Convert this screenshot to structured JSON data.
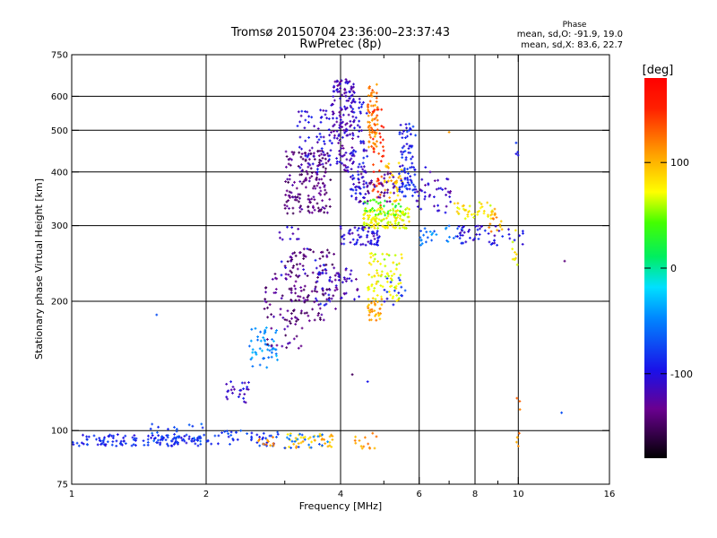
{
  "chart_data": {
    "type": "scatter",
    "title": "Tromsø 20150704 23:36:00–23:37:43",
    "subtitle": "RwPretec (8p)",
    "xlabel": "Frequency [MHz]",
    "ylabel": "Stationary phase Virtual Height [km]",
    "x_scale": "log",
    "y_scale": "log",
    "xlim": [
      1,
      16
    ],
    "ylim": [
      75,
      750
    ],
    "x_ticks": [
      1,
      2,
      4,
      6,
      8,
      10,
      16
    ],
    "x_tick_labels": [
      "1",
      "2",
      "4",
      "6",
      "8",
      "10",
      "16"
    ],
    "x_minor_ticks": [
      3,
      5,
      7,
      9
    ],
    "y_ticks": [
      75,
      100,
      200,
      300,
      400,
      500,
      600,
      750
    ],
    "y_tick_labels": [
      "75",
      "100",
      "200",
      "300",
      "400",
      "500",
      "600",
      "750"
    ],
    "grid_x": [
      2,
      4,
      6,
      8,
      10
    ],
    "grid_y": [
      100,
      200,
      300,
      400,
      500,
      600
    ],
    "grid": true,
    "info": {
      "heading": "Phase",
      "line_o": "mean, sd,O: -91.9, 19.0",
      "line_x": "mean, sd,X:  83.6, 22.7"
    },
    "colorbar": {
      "label": "[deg]",
      "min": -180,
      "max": 180,
      "ticks": [
        100,
        0,
        -100
      ],
      "tick_labels": [
        "100",
        "0",
        "-100"
      ]
    },
    "clusters": [
      {
        "f": [
          1.0,
          1.95
        ],
        "h": [
          92,
          98
        ],
        "phase": -88,
        "n": 130
      },
      {
        "f": [
          1.5,
          2.0
        ],
        "h": [
          92,
          104
        ],
        "phase": -75,
        "n": 30
      },
      {
        "f": [
          2.0,
          2.9
        ],
        "h": [
          92,
          100
        ],
        "phase": -82,
        "n": 45
      },
      {
        "f": [
          2.6,
          2.85
        ],
        "h": [
          92,
          97
        ],
        "phase": 112,
        "n": 10
      },
      {
        "f": [
          3.0,
          3.9
        ],
        "h": [
          91,
          99
        ],
        "phase": 95,
        "n": 40
      },
      {
        "f": [
          3.0,
          3.9
        ],
        "h": [
          91,
          99
        ],
        "phase": -60,
        "n": 20
      },
      {
        "f": [
          4.3,
          4.85
        ],
        "h": [
          89,
          99
        ],
        "phase": 110,
        "n": 14
      },
      {
        "f": [
          2.2,
          2.5
        ],
        "h": [
          116,
          130
        ],
        "phase": -108,
        "n": 25
      },
      {
        "f": [
          2.5,
          2.9
        ],
        "h": [
          140,
          175
        ],
        "phase": -45,
        "n": 50
      },
      {
        "f": [
          2.7,
          3.3
        ],
        "h": [
          155,
          235
        ],
        "phase": -135,
        "n": 60
      },
      {
        "f": [
          3.0,
          3.9
        ],
        "h": [
          180,
          265
        ],
        "phase": -140,
        "n": 120
      },
      {
        "f": [
          2.9,
          3.4
        ],
        "h": [
          230,
          300
        ],
        "phase": -112,
        "n": 20
      },
      {
        "f": [
          3.5,
          3.8
        ],
        "h": [
          195,
          250
        ],
        "phase": -100,
        "n": 25
      },
      {
        "f": [
          3.0,
          3.8
        ],
        "h": [
          320,
          450
        ],
        "phase": -138,
        "n": 170
      },
      {
        "f": [
          3.2,
          3.8
        ],
        "h": [
          400,
          560
        ],
        "phase": -105,
        "n": 60
      },
      {
        "f": [
          3.8,
          4.3
        ],
        "h": [
          400,
          660
        ],
        "phase": -115,
        "n": 150
      },
      {
        "f": [
          4.2,
          4.6
        ],
        "h": [
          330,
          600
        ],
        "phase": -102,
        "n": 90
      },
      {
        "f": [
          4.6,
          4.85
        ],
        "h": [
          450,
          640
        ],
        "phase": 118,
        "n": 70
      },
      {
        "f": [
          4.7,
          5.0
        ],
        "h": [
          330,
          560
        ],
        "phase": 150,
        "n": 40
      },
      {
        "f": [
          5.0,
          5.5
        ],
        "h": [
          340,
          420
        ],
        "phase": 95,
        "n": 40
      },
      {
        "f": [
          5.4,
          5.9
        ],
        "h": [
          350,
          520
        ],
        "phase": -90,
        "n": 90
      },
      {
        "f": [
          4.4,
          5.3
        ],
        "h": [
          340,
          400
        ],
        "phase": -130,
        "n": 40
      },
      {
        "f": [
          4.5,
          5.7
        ],
        "h": [
          295,
          330
        ],
        "phase": 72,
        "n": 130
      },
      {
        "f": [
          4.5,
          5.5
        ],
        "h": [
          315,
          345
        ],
        "phase": 35,
        "n": 30
      },
      {
        "f": [
          4.0,
          4.9
        ],
        "h": [
          270,
          300
        ],
        "phase": -105,
        "n": 60
      },
      {
        "f": [
          3.9,
          4.4
        ],
        "h": [
          200,
          240
        ],
        "phase": -118,
        "n": 30
      },
      {
        "f": [
          4.6,
          5.5
        ],
        "h": [
          200,
          260
        ],
        "phase": 70,
        "n": 80
      },
      {
        "f": [
          4.6,
          4.95
        ],
        "h": [
          180,
          205
        ],
        "phase": 105,
        "n": 30
      },
      {
        "f": [
          5.0,
          5.6
        ],
        "h": [
          195,
          230
        ],
        "phase": -85,
        "n": 15
      },
      {
        "f": [
          5.9,
          7.1
        ],
        "h": [
          320,
          390
        ],
        "phase": -112,
        "n": 40
      },
      {
        "f": [
          6.0,
          7.5
        ],
        "h": [
          270,
          300
        ],
        "phase": -55,
        "n": 30
      },
      {
        "f": [
          7.2,
          8.8
        ],
        "h": [
          310,
          340
        ],
        "phase": 80,
        "n": 40
      },
      {
        "f": [
          7.3,
          10.3
        ],
        "h": [
          270,
          300
        ],
        "phase": -100,
        "n": 50
      },
      {
        "f": [
          8.4,
          9.2
        ],
        "h": [
          290,
          330
        ],
        "phase": 110,
        "n": 15
      },
      {
        "f": [
          9.7,
          10.0
        ],
        "h": [
          240,
          300
        ],
        "phase": 75,
        "n": 10
      },
      {
        "f": [
          9.9,
          10.1
        ],
        "h": [
          80,
          120
        ],
        "phase": 115,
        "n": 8
      },
      {
        "f": [
          9.8,
          10.0
        ],
        "h": [
          430,
          470
        ],
        "phase": -95,
        "n": 4
      }
    ],
    "points": [
      [
        1.55,
        186,
        -70
      ],
      [
        12.5,
        110,
        -70
      ],
      [
        12.7,
        248,
        -140
      ],
      [
        4.6,
        130,
        -95
      ],
      [
        4.25,
        135,
        -150
      ],
      [
        7.0,
        495,
        110
      ],
      [
        6.35,
        400,
        -120
      ],
      [
        6.2,
        410,
        -100
      ]
    ]
  }
}
